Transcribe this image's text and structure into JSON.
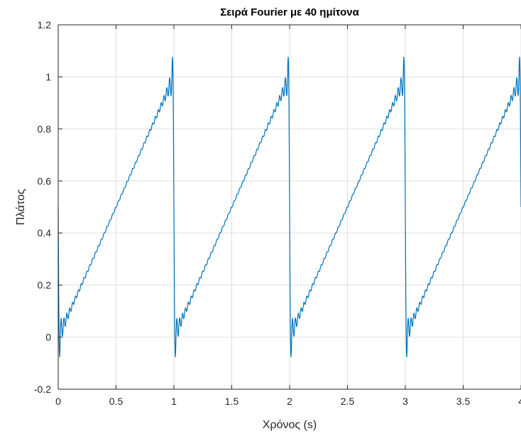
{
  "chart_data": {
    "type": "line",
    "title": "Σειρά Fourier με 40 ημίτονα",
    "xlabel": "Χρόνος (s)",
    "ylabel": "Πλάτος",
    "xlim": [
      0,
      4
    ],
    "ylim": [
      -0.2,
      1.2
    ],
    "xticks": [
      0,
      0.5,
      1,
      1.5,
      2,
      2.5,
      3,
      3.5,
      4
    ],
    "yticks": [
      -0.2,
      0,
      0.2,
      0.4,
      0.6,
      0.8,
      1,
      1.2
    ],
    "xtick_labels": [
      "0",
      "0.5",
      "1",
      "1.5",
      "2",
      "2.5",
      "3",
      "3.5",
      "4"
    ],
    "ytick_labels": [
      "-0.2",
      "0",
      "0.2",
      "0.4",
      "0.6",
      "0.8",
      "1",
      "1.2"
    ],
    "grid": true,
    "series": [
      {
        "harmonics": 40,
        "period": 1,
        "dc_offset": 0.5,
        "x_start": 0,
        "x_end": 4,
        "samples": 1600,
        "color": "#0072bd"
      }
    ]
  }
}
